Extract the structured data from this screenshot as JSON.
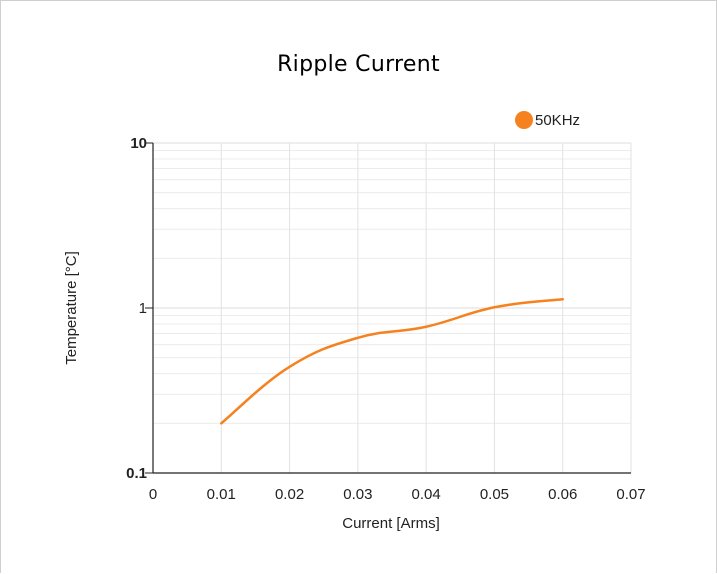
{
  "chart_data": {
    "type": "line",
    "title": "Ripple Current",
    "xlabel": "Current [Arms]",
    "ylabel": "Temperature [°C]",
    "x_scale": "linear",
    "y_scale": "log",
    "xlim": [
      0,
      0.07
    ],
    "ylim": [
      0.1,
      10
    ],
    "x_ticks": [
      "0",
      "0.01",
      "0.02",
      "0.03",
      "0.04",
      "0.05",
      "0.06",
      "0.07"
    ],
    "y_ticks": [
      "0.1",
      "1",
      "10"
    ],
    "grid": true,
    "legend_position": "top-right",
    "series": [
      {
        "name": "50KHz",
        "color": "#f5821f",
        "x": [
          0.01,
          0.02,
          0.03,
          0.04,
          0.05,
          0.06
        ],
        "y": [
          0.2,
          0.44,
          0.66,
          0.77,
          1.01,
          1.13
        ]
      }
    ]
  }
}
